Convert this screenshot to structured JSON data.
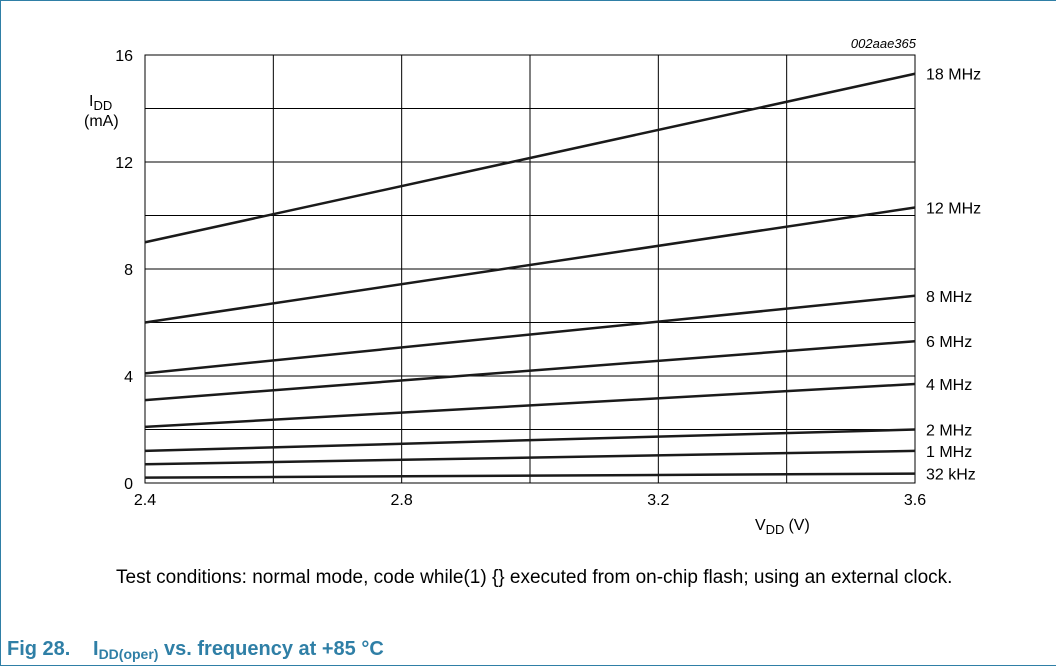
{
  "chart_data": {
    "type": "line",
    "code": "002aae365",
    "xlabel": {
      "main": "V",
      "sub": "DD",
      "unit": "(V)"
    },
    "ylabel": {
      "main": "I",
      "sub": "DD",
      "unit": "(mA)"
    },
    "xlim": [
      2.4,
      3.6
    ],
    "ylim": [
      0,
      16
    ],
    "xticks": [
      "2.4",
      "2.8",
      "3.2",
      "3.6"
    ],
    "yticks": [
      "0",
      "4",
      "8",
      "12",
      "16"
    ],
    "grid": true,
    "color": "#1a1a1a",
    "series": [
      {
        "name": "18 MHz",
        "x": [
          2.4,
          3.6
        ],
        "y": [
          9.0,
          15.3
        ]
      },
      {
        "name": "12 MHz",
        "x": [
          2.4,
          3.6
        ],
        "y": [
          6.0,
          10.3
        ]
      },
      {
        "name": "8 MHz",
        "x": [
          2.4,
          3.6
        ],
        "y": [
          4.1,
          7.0
        ]
      },
      {
        "name": "6 MHz",
        "x": [
          2.4,
          3.6
        ],
        "y": [
          3.1,
          5.3
        ]
      },
      {
        "name": "4 MHz",
        "x": [
          2.4,
          3.6
        ],
        "y": [
          2.1,
          3.7
        ]
      },
      {
        "name": "2 MHz",
        "x": [
          2.4,
          3.6
        ],
        "y": [
          1.2,
          2.0
        ]
      },
      {
        "name": "1 MHz",
        "x": [
          2.4,
          3.6
        ],
        "y": [
          0.7,
          1.2
        ]
      },
      {
        "name": "32 kHz",
        "x": [
          2.4,
          3.6
        ],
        "y": [
          0.2,
          0.35
        ]
      }
    ]
  },
  "note": "Test conditions: normal mode, code while(1) {} executed from on-chip flash; using an external clock.",
  "caption": {
    "number": "Fig 28.",
    "main": "I",
    "sub": "DD(oper)",
    "rest": " vs. frequency at +85 °C"
  },
  "theme": {
    "accent": "#2f7fa6"
  }
}
